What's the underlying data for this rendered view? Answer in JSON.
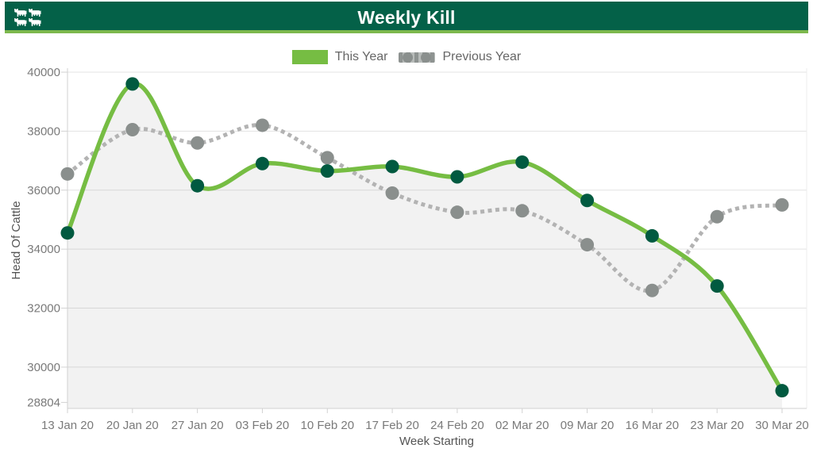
{
  "header": {
    "title": "Weekly Kill"
  },
  "legend": {
    "this_year": "This Year",
    "previous_year": "Previous Year"
  },
  "colors": {
    "header_bg": "#046148",
    "header_accent": "#7db84d",
    "this_year_line": "#76bd43",
    "this_year_marker": "#015a40",
    "this_year_fill": "rgba(0,0,0,0.05)",
    "previous_year_line": "#b3b3b3",
    "previous_year_marker": "#8a8f8d",
    "grid": "#e3e3e3",
    "axis": "#d2d2d2",
    "tick_text": "#7a7a7a",
    "axis_title_text": "#555555",
    "legend_text": "#666666"
  },
  "chart_data": {
    "type": "line",
    "title": "Weekly Kill",
    "xlabel": "Week Starting",
    "ylabel": "Head Of Cattle",
    "categories": [
      "13 Jan 20",
      "20 Jan 20",
      "27 Jan 20",
      "03 Feb 20",
      "10 Feb 20",
      "17 Feb 20",
      "24 Feb 20",
      "02 Mar 20",
      "09 Mar 20",
      "16 Mar 20",
      "23 Mar 20",
      "30 Mar 20"
    ],
    "series": [
      {
        "name": "This Year",
        "line_style": "solid",
        "area_fill": true,
        "values": [
          34550,
          39600,
          36150,
          36900,
          36650,
          36800,
          36450,
          36950,
          35650,
          34450,
          32750,
          29200
        ]
      },
      {
        "name": "Previous Year",
        "line_style": "dotted",
        "area_fill": false,
        "values": [
          36550,
          38050,
          37600,
          38200,
          37100,
          35900,
          35250,
          35300,
          34150,
          32600,
          35100,
          35500
        ]
      }
    ],
    "y_ticks": [
      40000,
      38000,
      36000,
      34000,
      32000,
      30000,
      28804
    ],
    "ylim": [
      28600,
      40000
    ],
    "grid": true,
    "legend_position": "top"
  }
}
